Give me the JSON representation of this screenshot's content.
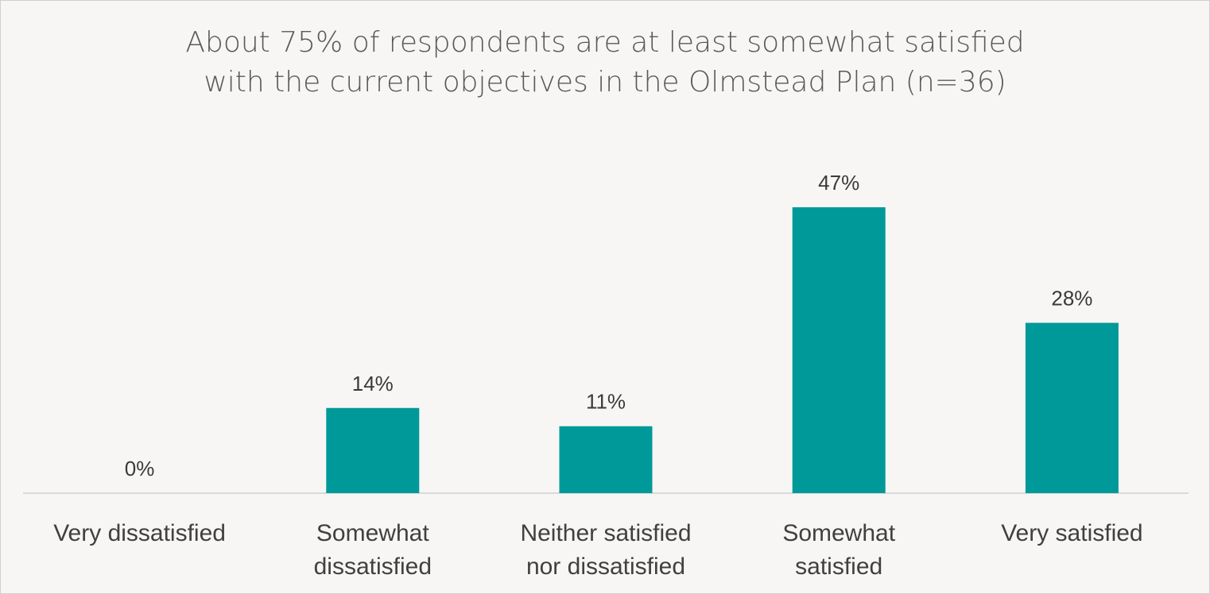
{
  "chart_data": {
    "type": "bar",
    "title": "About 75% of respondents are at least somewhat satisfied with the current objectives in the Olmstead Plan (n=36)",
    "title_lines": [
      "About 75% of respondents are at least somewhat satisfied",
      "with the current objectives in the Olmstead Plan (n=36)"
    ],
    "categories": [
      "Very dissatisfied",
      "Somewhat dissatisfied",
      "Neither satisfied nor dissatisfied",
      "Somewhat satisfied",
      "Very satisfied"
    ],
    "category_lines": [
      [
        "Very dissatisfied"
      ],
      [
        "Somewhat",
        "dissatisfied"
      ],
      [
        "Neither satisfied",
        "nor dissatisfied"
      ],
      [
        "Somewhat",
        "satisfied"
      ],
      [
        "Very satisfied"
      ]
    ],
    "values": [
      0,
      14,
      11,
      47,
      28
    ],
    "value_labels": [
      "0%",
      "14%",
      "11%",
      "47%",
      "28%"
    ],
    "unit": "%",
    "xlabel": "",
    "ylabel": "",
    "ylim": [
      0,
      50
    ],
    "grid": false,
    "legend": "none",
    "bar_color": "#009999",
    "axis_color": "#d9d9d9"
  }
}
